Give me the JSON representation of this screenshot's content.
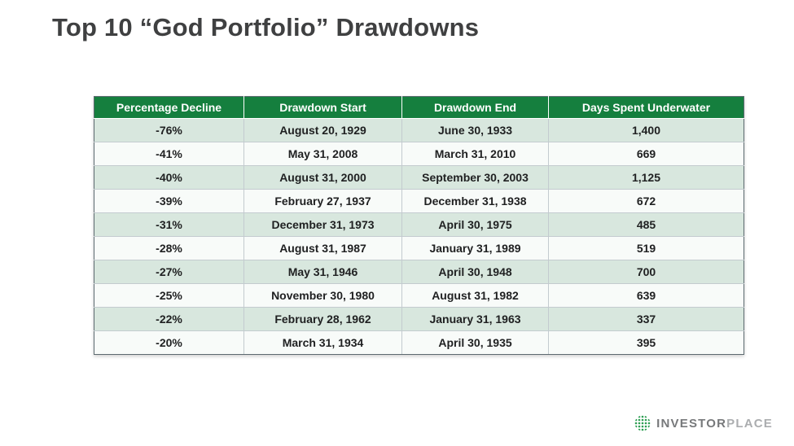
{
  "page": {
    "title": "Top 10 “God Portfolio” Drawdowns"
  },
  "colors": {
    "header_bg": "#157f3e",
    "row_alt_bg": "#d8e7de",
    "row_bg": "#f8fbf9",
    "logo_green": "#2e9e53",
    "title_color": "#3f4041"
  },
  "chart_data": {
    "type": "table",
    "title": "Top 10 “God Portfolio” Drawdowns",
    "columns": [
      "Percentage Decline",
      "Drawdown Start",
      "Drawdown End",
      "Days Spent Underwater"
    ],
    "rows": [
      [
        "-76%",
        "August 20, 1929",
        "June 30, 1933",
        "1,400"
      ],
      [
        "-41%",
        "May 31, 2008",
        "March 31, 2010",
        "669"
      ],
      [
        "-40%",
        "August 31, 2000",
        "September 30, 2003",
        "1,125"
      ],
      [
        "-39%",
        "February 27, 1937",
        "December 31, 1938",
        "672"
      ],
      [
        "-31%",
        "December 31, 1973",
        "April 30, 1975",
        "485"
      ],
      [
        "-28%",
        "August 31, 1987",
        "January 31, 1989",
        "519"
      ],
      [
        "-27%",
        "May 31, 1946",
        "April 30, 1948",
        "700"
      ],
      [
        "-25%",
        "November 30, 1980",
        "August 31, 1982",
        "639"
      ],
      [
        "-22%",
        "February 28, 1962",
        "January 31, 1963",
        "337"
      ],
      [
        "-20%",
        "March 31, 1934",
        "April 30, 1935",
        "395"
      ]
    ]
  },
  "logo": {
    "brand_primary": "INVESTOR",
    "brand_secondary": "PLACE",
    "icon": "dotted-globe-icon"
  }
}
